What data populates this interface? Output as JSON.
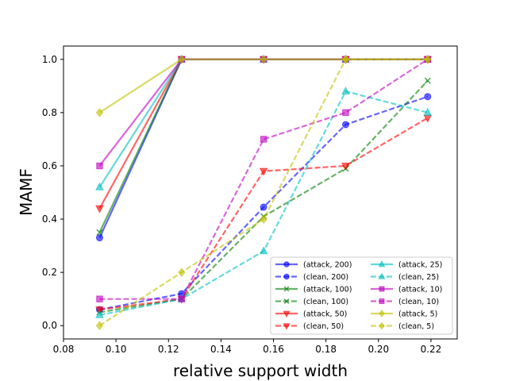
{
  "chart_data": {
    "type": "line",
    "title": "",
    "xlabel": "relative support width",
    "ylabel": "MAMF",
    "xlim": [
      0.08,
      0.23
    ],
    "ylim": [
      -0.05,
      1.05
    ],
    "xticks": [
      0.08,
      0.1,
      0.12,
      0.14,
      0.16,
      0.18,
      0.2,
      0.22
    ],
    "xtick_labels": [
      "0.08",
      "0.10",
      "0.12",
      "0.14",
      "0.16",
      "0.18",
      "0.20",
      "0.22"
    ],
    "yticks": [
      0.0,
      0.2,
      0.4,
      0.6,
      0.8,
      1.0
    ],
    "ytick_labels": [
      "0.0",
      "0.2",
      "0.4",
      "0.6",
      "0.8",
      "1.0"
    ],
    "x": [
      0.09375,
      0.125,
      0.15625,
      0.1875,
      0.21875
    ],
    "legend_position": "lower-right",
    "series": [
      {
        "name": "(attack, 200)",
        "color": "#0000ff",
        "marker": "circle",
        "dash": "solid",
        "values": [
          0.33,
          1.0,
          1.0,
          1.0,
          1.0
        ]
      },
      {
        "name": "(clean, 200)",
        "color": "#0000ff",
        "marker": "circle",
        "dash": "dashed",
        "values": [
          0.06,
          0.12,
          0.445,
          0.755,
          0.86
        ]
      },
      {
        "name": "(attack, 100)",
        "color": "#008000",
        "marker": "x",
        "dash": "solid",
        "values": [
          0.35,
          1.0,
          1.0,
          1.0,
          1.0
        ]
      },
      {
        "name": "(clean, 100)",
        "color": "#008000",
        "marker": "x",
        "dash": "dashed",
        "values": [
          0.05,
          0.1,
          0.41,
          0.59,
          0.92
        ]
      },
      {
        "name": "(attack, 50)",
        "color": "#ff0000",
        "marker": "triangle-down",
        "dash": "solid",
        "values": [
          0.44,
          1.0,
          1.0,
          1.0,
          1.0
        ]
      },
      {
        "name": "(clean, 50)",
        "color": "#ff0000",
        "marker": "triangle-down",
        "dash": "dashed",
        "values": [
          0.06,
          0.1,
          0.58,
          0.6,
          0.78
        ]
      },
      {
        "name": "(attack, 25)",
        "color": "#00bfbf",
        "marker": "triangle-up",
        "dash": "solid",
        "values": [
          0.52,
          1.0,
          1.0,
          1.0,
          1.0
        ]
      },
      {
        "name": "(clean, 25)",
        "color": "#00bfbf",
        "marker": "triangle-up",
        "dash": "dashed",
        "values": [
          0.04,
          0.1,
          0.28,
          0.88,
          0.8
        ]
      },
      {
        "name": "(attack, 10)",
        "color": "#bf00bf",
        "marker": "square",
        "dash": "solid",
        "values": [
          0.6,
          1.0,
          1.0,
          1.0,
          1.0
        ]
      },
      {
        "name": "(clean, 10)",
        "color": "#bf00bf",
        "marker": "square",
        "dash": "dashed",
        "values": [
          0.1,
          0.1,
          0.7,
          0.8,
          1.0
        ]
      },
      {
        "name": "(attack, 5)",
        "color": "#bfbf00",
        "marker": "diamond",
        "dash": "solid",
        "values": [
          0.8,
          1.0,
          1.0,
          1.0,
          1.0
        ]
      },
      {
        "name": "(clean, 5)",
        "color": "#bfbf00",
        "marker": "diamond",
        "dash": "dashed",
        "values": [
          0.0,
          0.2,
          0.4,
          1.0,
          1.0
        ]
      }
    ]
  }
}
